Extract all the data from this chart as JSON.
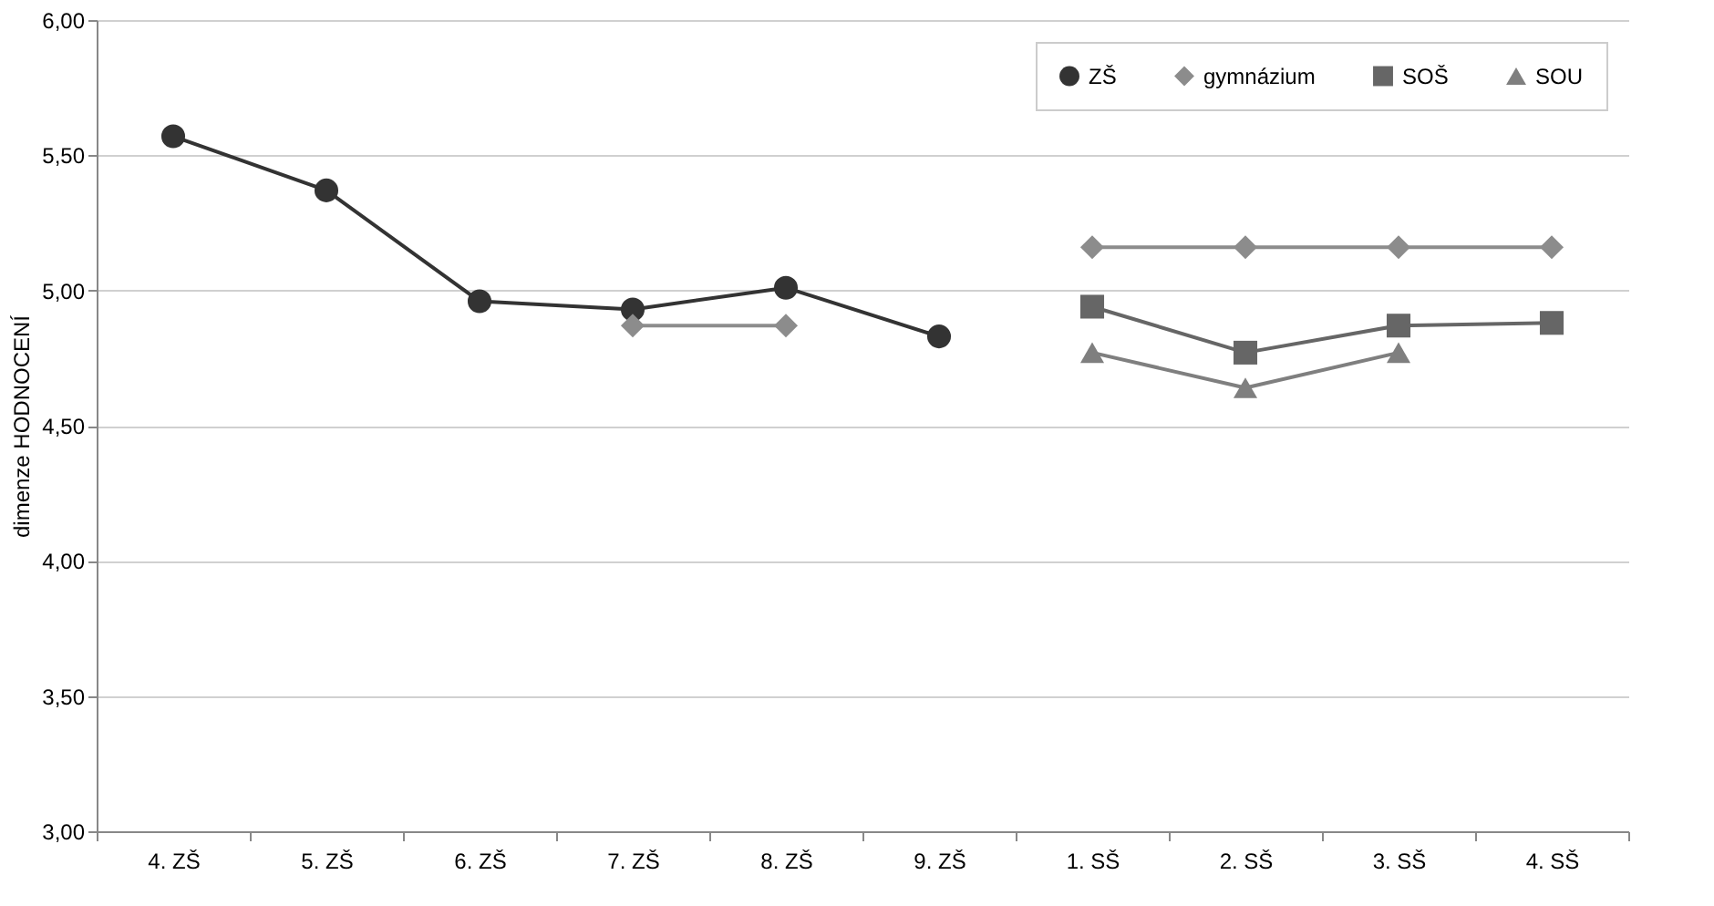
{
  "chart_data": {
    "type": "line",
    "ylabel": "dimenze HODNOCENÍ",
    "categories": [
      "4. ZŠ",
      "5. ZŠ",
      "6. ZŠ",
      "7. ZŠ",
      "8. ZŠ",
      "9. ZŠ",
      "1. SŠ",
      "2. SŠ",
      "3. SŠ",
      "4. SŠ"
    ],
    "series": [
      {
        "name": "ZŠ",
        "color": "#333333",
        "marker": "circle",
        "values": [
          5.57,
          5.37,
          4.96,
          4.93,
          5.01,
          4.83,
          null,
          null,
          null,
          null
        ]
      },
      {
        "name": "gymnázium",
        "color": "#8c8c8c",
        "marker": "diamond",
        "values": [
          null,
          null,
          null,
          4.87,
          4.87,
          null,
          5.16,
          5.16,
          5.16,
          5.16
        ]
      },
      {
        "name": "SOŠ",
        "color": "#666666",
        "marker": "square",
        "values": [
          null,
          null,
          null,
          null,
          null,
          null,
          4.94,
          4.77,
          4.87,
          4.88
        ]
      },
      {
        "name": "SOU",
        "color": "#7f7f7f",
        "marker": "triangle",
        "values": [
          null,
          null,
          null,
          null,
          null,
          null,
          4.77,
          4.64,
          4.77,
          null
        ]
      }
    ],
    "ylim": [
      3,
      6
    ],
    "yticks": [
      {
        "value": 3,
        "label": "3,00"
      },
      {
        "value": 3.5,
        "label": "3,50"
      },
      {
        "value": 4,
        "label": "4,00"
      },
      {
        "value": 4.5,
        "label": "4,50"
      },
      {
        "value": 5,
        "label": "5,00"
      },
      {
        "value": 5.5,
        "label": "5,50"
      },
      {
        "value": 6,
        "label": "6,00"
      }
    ],
    "grid": "y",
    "legend": "top right"
  }
}
